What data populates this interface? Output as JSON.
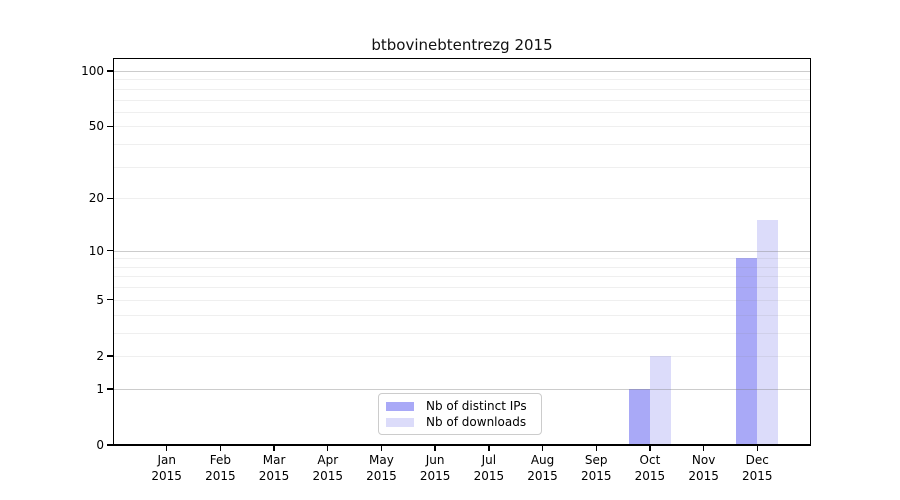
{
  "title": "btbovinebtentrezg 2015",
  "chart_data": {
    "type": "bar",
    "title": "btbovinebtentrezg 2015",
    "x_months": [
      "Jan",
      "Feb",
      "Mar",
      "Apr",
      "May",
      "Jun",
      "Jul",
      "Aug",
      "Sep",
      "Oct",
      "Nov",
      "Dec"
    ],
    "x_year": "2015",
    "series": [
      {
        "name": "Nb of distinct IPs",
        "color": "#a9a9f7",
        "values": [
          0,
          0,
          0,
          0,
          0,
          0,
          0,
          0,
          0,
          1,
          0,
          9
        ]
      },
      {
        "name": "Nb of downloads",
        "color": "#dcdcfa",
        "values": [
          0,
          0,
          0,
          0,
          0,
          0,
          0,
          0,
          0,
          2,
          0,
          15
        ]
      }
    ],
    "y_axis": {
      "scale": "log1p",
      "labeled_ticks": [
        100,
        50,
        20,
        10,
        5,
        2,
        1,
        0
      ],
      "major_gridlines": [
        1,
        10,
        100
      ],
      "minor_gridlines": [
        2,
        3,
        4,
        5,
        6,
        7,
        8,
        9,
        20,
        30,
        40,
        50,
        60,
        70,
        80,
        90
      ],
      "ylim": [
        0,
        118
      ]
    },
    "legend": {
      "entries": [
        "Nb of distinct IPs",
        "Nb of downloads"
      ],
      "position": "bottom-center"
    },
    "grid": true,
    "xlabel": "",
    "ylabel": ""
  },
  "colors": {
    "bar_distinct_ips": "#a9a9f7",
    "bar_downloads": "#dcdcfa",
    "axis": "#000000",
    "legend_border": "#cccccc",
    "background": "#ffffff"
  }
}
